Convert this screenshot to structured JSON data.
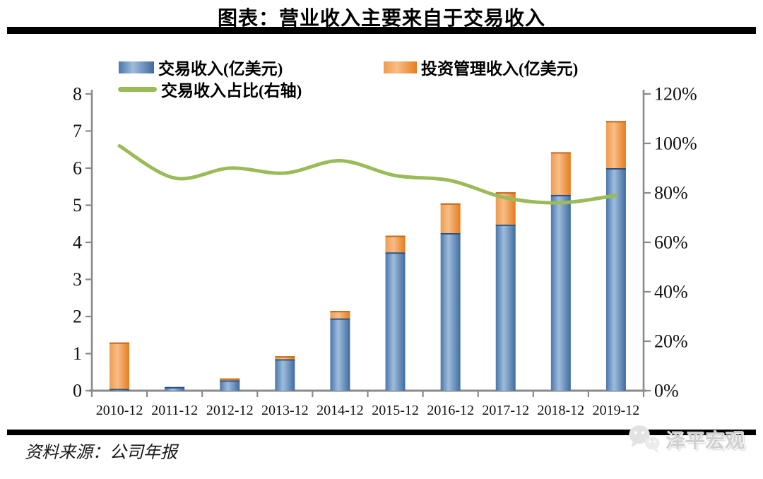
{
  "title": "图表：营业收入主要来自于交易收入",
  "legend": [
    {
      "label": "交易收入(亿美元)",
      "marker": "bar",
      "color": "#4f81bd"
    },
    {
      "label": "投资管理收入(亿美元)",
      "marker": "bar",
      "color": "#f0913d"
    },
    {
      "label": "交易收入占比(右轴)",
      "marker": "line",
      "color": "#9bbb59"
    }
  ],
  "chart_data": {
    "type": "bar",
    "subtype": "stacked-bars-with-line",
    "stacked": true,
    "grid": false,
    "legend_position": "top-left",
    "categories": [
      "2010-12",
      "2011-12",
      "2012-12",
      "2013-12",
      "2014-12",
      "2015-12",
      "2016-12",
      "2017-12",
      "2018-12",
      "2019-12"
    ],
    "series": [
      {
        "name": "交易收入(亿美元)",
        "type": "bar",
        "axis": "left",
        "color": "#4f81bd",
        "values": [
          0.05,
          0.1,
          0.28,
          0.85,
          1.95,
          3.73,
          4.25,
          4.48,
          5.28,
          6.0
        ]
      },
      {
        "name": "投资管理收入(亿美元)",
        "type": "bar",
        "axis": "left",
        "color": "#f0913d",
        "values": [
          1.25,
          0.0,
          0.05,
          0.08,
          0.2,
          0.45,
          0.8,
          0.87,
          1.15,
          1.27
        ]
      },
      {
        "name": "交易收入占比(右轴)",
        "type": "line",
        "axis": "right",
        "unit": "%",
        "color": "#9bbb59",
        "values": [
          99,
          86,
          90,
          88,
          93,
          87,
          85,
          78,
          76,
          79
        ]
      }
    ],
    "left_axis": {
      "min": 0,
      "max": 8,
      "step": 1,
      "tick_labels": [
        "0",
        "1",
        "2",
        "3",
        "4",
        "5",
        "6",
        "7",
        "8"
      ]
    },
    "right_axis": {
      "min": 0,
      "max": 120,
      "step": 20,
      "tick_labels": [
        "0%",
        "20%",
        "40%",
        "60%",
        "80%",
        "100%",
        "120%"
      ]
    }
  },
  "footer": {
    "source": "资料来源：公司年报",
    "brand": "泽平宏观"
  },
  "colors": {
    "bar_blue": "#4f81bd",
    "bar_blue_edge": "#4a77ab",
    "bar_blue_light": "#9fbcdc",
    "bar_blue_dark": "#3f6ca0",
    "bar_blue_cap": "#28537f",
    "bar_orange": "#f0913d",
    "bar_orange_edge": "#ee9c50",
    "bar_orange_light": "#f8bd87",
    "bar_orange_dark": "#e67c1f",
    "bar_orange_cap": "#c66a18",
    "line_green": "#9bbb59",
    "axis_gray": "#8a8a8a",
    "text": "#111111",
    "brand_gray": "#d0d0d0"
  }
}
